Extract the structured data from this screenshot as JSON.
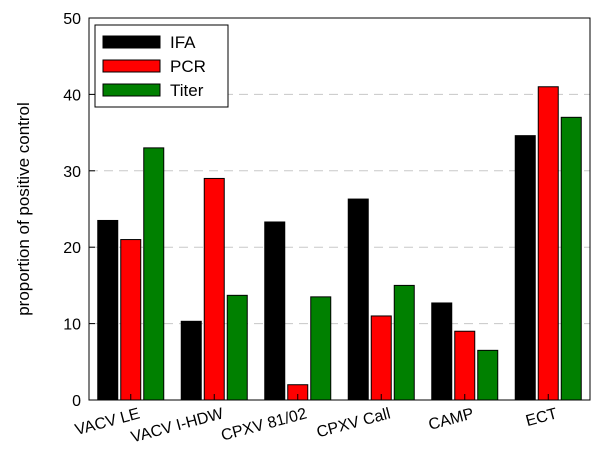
{
  "chart_data": {
    "type": "bar",
    "title": "",
    "xlabel": "",
    "ylabel": "proportion of positive control",
    "ylim": [
      0,
      50
    ],
    "yticks": [
      0,
      10,
      20,
      30,
      40,
      50
    ],
    "grid": "horizontal dashed at 10, 20, 30, 40",
    "legend_placement": "top-left",
    "categories": [
      "VACV LE",
      "VACV I-HDW",
      "CPXV 81/02",
      "CPXV Call",
      "CAMP",
      "ECT"
    ],
    "series": [
      {
        "name": "IFA",
        "color": "#000000",
        "values": [
          23.5,
          10.3,
          23.3,
          26.3,
          12.7,
          34.6
        ]
      },
      {
        "name": "PCR",
        "color": "#ff0000",
        "values": [
          21.0,
          29.0,
          2.0,
          11.0,
          9.0,
          41.0
        ]
      },
      {
        "name": "Titer",
        "color": "#008000",
        "values": [
          33.0,
          13.7,
          13.5,
          15.0,
          6.5,
          37.0
        ]
      }
    ]
  }
}
